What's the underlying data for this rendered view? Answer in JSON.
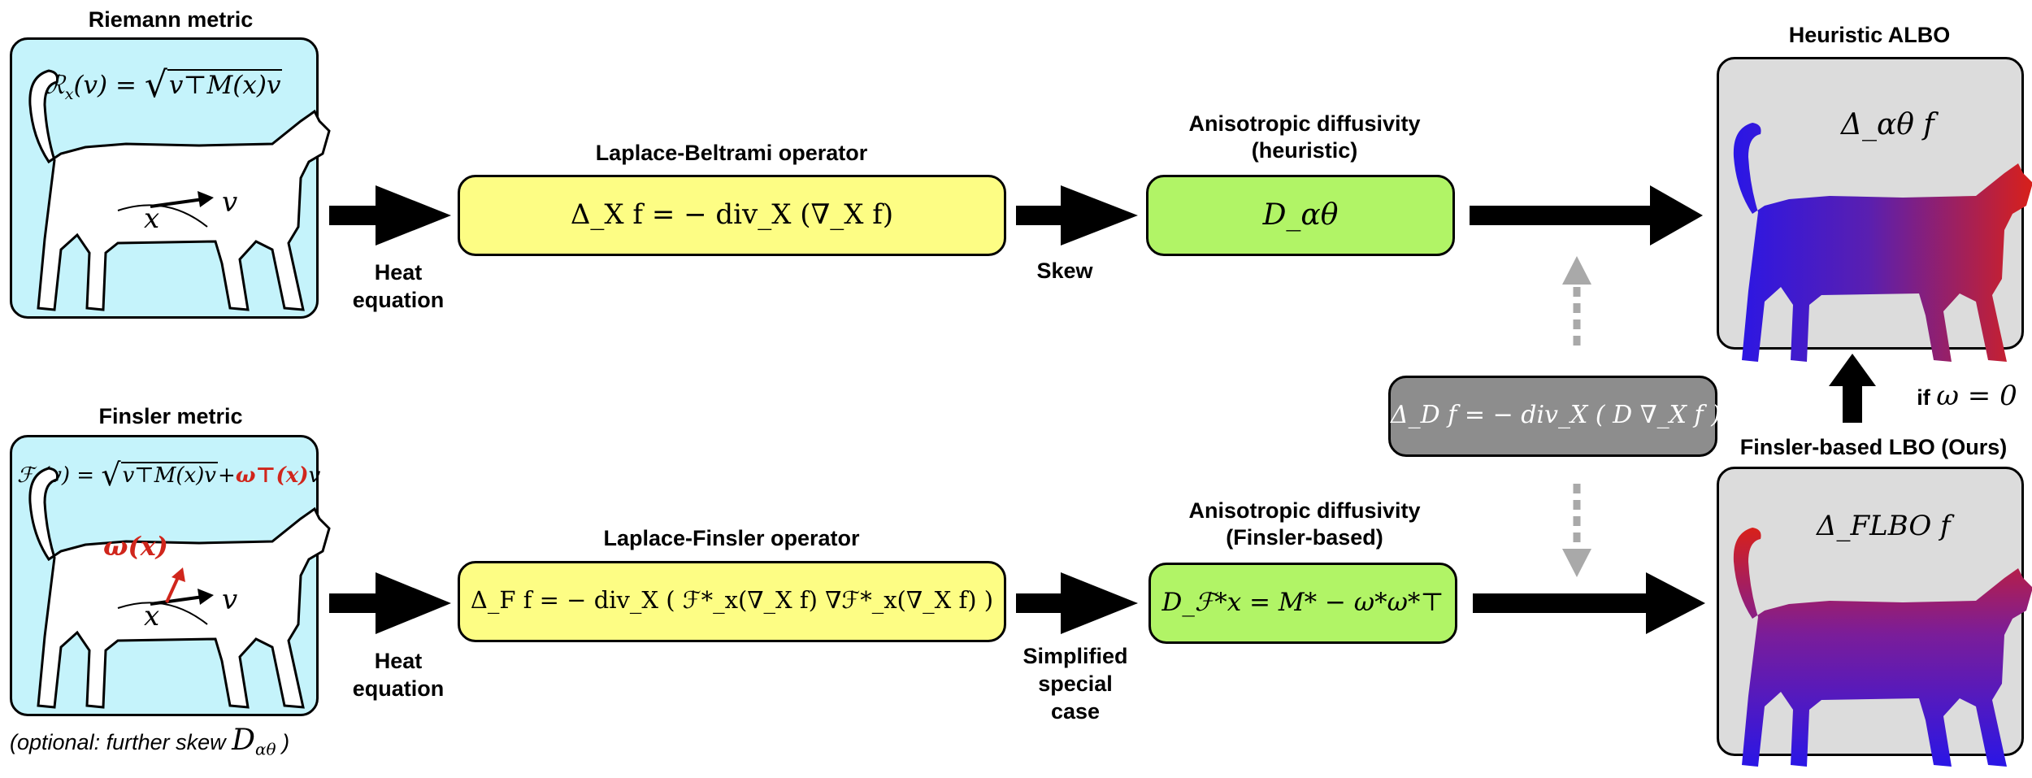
{
  "titles": {
    "riemann": "Riemann metric",
    "finsler": "Finsler metric",
    "lbo": "Laplace-Beltrami operator",
    "lfo": "Laplace-Finsler operator",
    "aniso_heur_1": "Anisotropic diffusivity",
    "aniso_heur_2": "(heuristic)",
    "aniso_fins_1": "Anisotropic diffusivity",
    "aniso_fins_2": "(Finsler-based)",
    "heuristic_albo": "Heuristic ALBO",
    "finsler_lbo": "Finsler-based LBO (Ours)"
  },
  "arrow_labels": {
    "heat_top_1": "Heat",
    "heat_top_2": "equation",
    "skew": "Skew",
    "heat_bot_1": "Heat",
    "heat_bot_2": "equation",
    "simp_1": "Simplified",
    "simp_2": "special",
    "simp_3": "case",
    "if_omega_prefix": "if",
    "if_omega_eq": "ω = 0"
  },
  "formulas": {
    "riemann_lhs": "ℛ",
    "riemann_sub": "x",
    "riemann_rest": "(v) = ",
    "riemann_sqrt": "v⊤M(x)v",
    "finsler_lhs": "ℱ",
    "finsler_sub": "x",
    "finsler_rest": "(v) = ",
    "finsler_sqrt": "v⊤M(x)v",
    "finsler_plus": "+",
    "finsler_omega": "ω⊤(x)",
    "finsler_v": "v",
    "lbo": "Δ_X f = − div_X (∇_X f)",
    "lfo": "Δ_F f = − div_X ( ℱ*_x(∇_X f) ∇ℱ*_x(∇_X f) )",
    "d_alpha": "D_αθ",
    "d_finsler": "D_ℱ*x = M* − ω*ω*⊤",
    "delta_d": "Δ_D f = − div_X ( D ∇_X f )",
    "albo": "Δ_αθ f",
    "flbo": "Δ_FLBO f"
  },
  "cat_labels": {
    "x_top": "x",
    "v_top": "v",
    "x_bot": "x",
    "v_bot": "v",
    "omega": "ω(x)"
  },
  "footnote": {
    "text": "(optional: further skew",
    "math": "D",
    "sub": "αθ",
    "close": ")"
  },
  "colors": {
    "cyan": "#c5f3fb",
    "yellow": "#fdfd84",
    "green": "#b1f466",
    "gray": "#dcdcdc",
    "dark_gray": "#8d8d8d",
    "red_accent": "#d0261c",
    "gradient_blue": "#2a16e6",
    "gradient_red": "#d8201a"
  }
}
